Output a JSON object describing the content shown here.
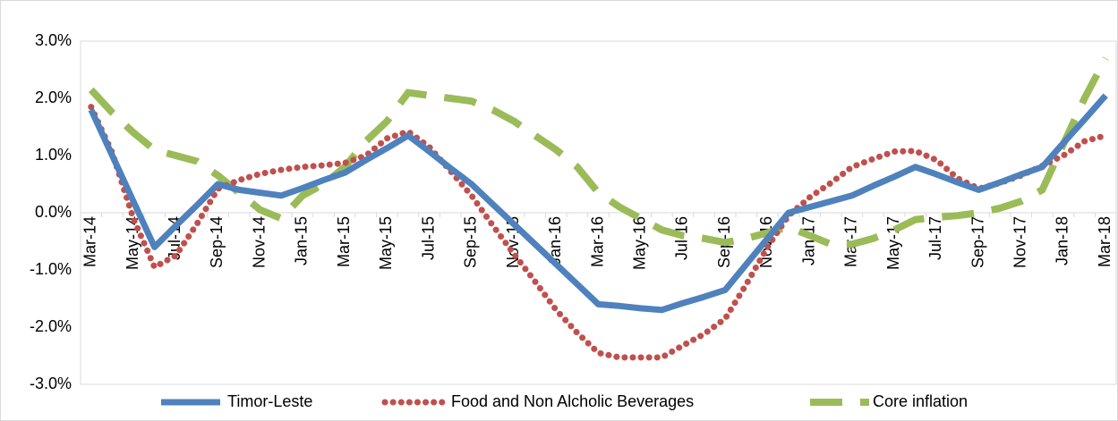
{
  "chart_data": {
    "type": "line",
    "categories": [
      "Mar-14",
      null,
      "May-14",
      null,
      "Jul-14",
      null,
      "Sep-14",
      null,
      "Nov-14",
      null,
      "Jan-15",
      null,
      "Mar-15",
      null,
      "May-15",
      null,
      "Jul-15",
      null,
      "Sep-15",
      null,
      "Nov-15",
      null,
      "Jan-16",
      null,
      "Mar-16",
      null,
      "May-16",
      null,
      "Jul-16",
      null,
      "Sep-16",
      null,
      "Nov-16",
      null,
      "Jan-17",
      null,
      "Mar-17",
      null,
      "May-17",
      null,
      "Jul-17",
      null,
      "Sep-17",
      null,
      "Nov-17",
      null,
      "Jan-18",
      null,
      "Mar-18"
    ],
    "series": [
      {
        "name": "Timor-Leste",
        "color": "#4f81bd",
        "style": "solid",
        "values": [
          1.8,
          1.0,
          0.2,
          -0.6,
          -0.23,
          0.13,
          0.5,
          0.4,
          0.35,
          0.3,
          0.43,
          0.57,
          0.7,
          0.92,
          1.13,
          1.35,
          1.07,
          0.78,
          0.5,
          0.15,
          -0.2,
          -0.55,
          -0.9,
          -1.25,
          -1.6,
          -1.63,
          -1.67,
          -1.7,
          -1.58,
          -1.47,
          -1.35,
          -0.9,
          -0.45,
          0.0,
          0.1,
          0.2,
          0.3,
          0.47,
          0.63,
          0.8,
          0.67,
          0.53,
          0.4,
          0.53,
          0.67,
          0.8,
          1.22,
          1.63,
          2.05
        ]
      },
      {
        "name": "Food and Non Alcholic Beverages",
        "color": "#c0504d",
        "style": "dotted",
        "values": [
          1.85,
          1.05,
          -0.1,
          -0.95,
          -0.75,
          -0.2,
          0.42,
          0.57,
          0.68,
          0.75,
          0.8,
          0.83,
          0.87,
          1.0,
          1.3,
          1.42,
          1.15,
          0.73,
          0.3,
          -0.22,
          -0.72,
          -1.2,
          -1.7,
          -2.1,
          -2.45,
          -2.53,
          -2.53,
          -2.53,
          -2.32,
          -2.12,
          -1.85,
          -1.25,
          -0.6,
          -0.05,
          0.27,
          0.52,
          0.8,
          0.94,
          1.07,
          1.08,
          0.92,
          0.6,
          0.42,
          0.52,
          0.65,
          0.82,
          1.0,
          1.25,
          1.35
        ]
      },
      {
        "name": "Core inflation",
        "color": "#9bbb59",
        "style": "dashed",
        "values": [
          2.15,
          1.75,
          1.4,
          1.1,
          1.0,
          0.9,
          0.65,
          0.35,
          0.05,
          -0.1,
          0.3,
          0.5,
          0.8,
          1.25,
          1.6,
          2.1,
          2.05,
          2.0,
          1.95,
          1.8,
          1.6,
          1.35,
          1.1,
          0.8,
          0.35,
          0.1,
          -0.1,
          -0.3,
          -0.4,
          -0.45,
          -0.52,
          -0.45,
          -0.35,
          -0.25,
          -0.4,
          -0.55,
          -0.55,
          -0.45,
          -0.3,
          -0.12,
          -0.08,
          -0.05,
          0.0,
          0.08,
          0.2,
          0.4,
          1.2,
          2.0,
          2.7
        ]
      }
    ],
    "ylim": [
      -3,
      3
    ],
    "yticks": [
      {
        "value": -3,
        "label": "-3.0%"
      },
      {
        "value": -2,
        "label": "-2.0%"
      },
      {
        "value": -1,
        "label": "-1.0%"
      },
      {
        "value": 0,
        "label": "0.0%"
      },
      {
        "value": 1,
        "label": "1.0%"
      },
      {
        "value": 2,
        "label": "2.0%"
      },
      {
        "value": 3,
        "label": "3.0%"
      }
    ],
    "grid": false,
    "legend": "bottom"
  }
}
